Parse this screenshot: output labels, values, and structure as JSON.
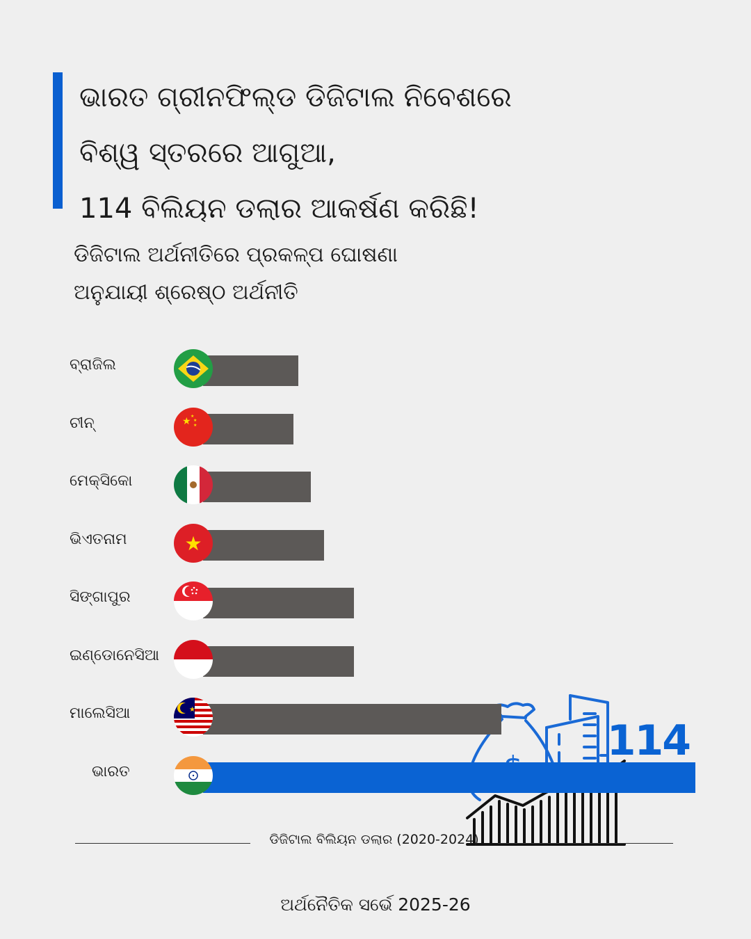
{
  "headline": {
    "lines": [
      "ଭାରତ ଗ୍ରୀନଫିଲ୍ଡ ଡିଜିଟାଲ ନିବେଶରେ",
      "ବିଶ୍ୱ ସ୍ତରରେ ଆଗୁଆ,",
      "114 ବିଲିୟନ ଡଲାର ଆକର୍ଷଣ କରିଛି!"
    ]
  },
  "subtitle": {
    "lines": [
      "ଡିଜିଟାଲ ଅର୍ଥନୀତିରେ ପ୍ରକଳ୍ପ ଘୋଷଣା",
      "ଅନୁଯାୟୀ ଶ୍ରେଷ୍ଠ ଅର୍ଥନୀତି"
    ]
  },
  "chart_data": {
    "type": "bar",
    "orientation": "horizontal",
    "categories": [
      "ବ୍ରାଜିଲ",
      "ଚୀନ୍",
      "ମେକ୍ସିକୋ",
      "ଭିଏତନାମ",
      "ସିଙ୍ଗାପୁର",
      "ଇଣ୍ଡୋନେସିଆ",
      "ମାଲେସିଆ",
      "ଭାରତ"
    ],
    "values": [
      22,
      21,
      25,
      28,
      35,
      35,
      69,
      114
    ],
    "data_labels": {
      "ଭାରତ": "114"
    },
    "highlight_category": "ଭାରତ",
    "xlim": [
      0,
      114
    ],
    "xlabel": "ଡିଜିଟାଲ ବିଲିୟନ ଡଲାର (2020-2024)",
    "ylabel": "",
    "grid": false,
    "colors": {
      "default_bar": "#5c5957",
      "highlight_bar": "#0a63d3",
      "accent": "#0a5fd0"
    },
    "flags": [
      "brazil-flag-icon",
      "china-flag-icon",
      "mexico-flag-icon",
      "vietnam-flag-icon",
      "singapore-flag-icon",
      "indonesia-flag-icon",
      "malaysia-flag-icon",
      "india-flag-icon"
    ]
  },
  "illustration_icon": "money-bag-buildings-growth-icon",
  "source": "ଅର୍ଥନୈତିକ ସର୍ଭେ 2025-26"
}
